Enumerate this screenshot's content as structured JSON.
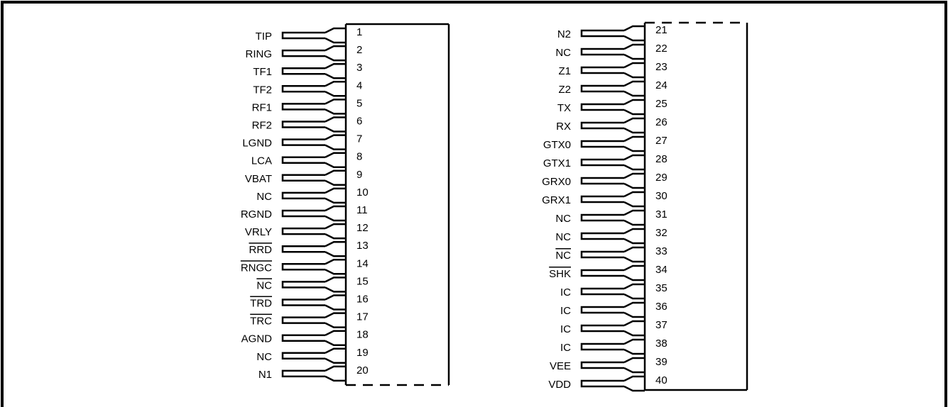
{
  "left_pins": [
    {
      "label": "TIP",
      "number": 1
    },
    {
      "label": "RING",
      "number": 2
    },
    {
      "label": "TF1",
      "number": 3
    },
    {
      "label": "TF2",
      "number": 4
    },
    {
      "label": "RF1",
      "number": 5
    },
    {
      "label": "RF2",
      "number": 6
    },
    {
      "label": "LGND",
      "number": 7
    },
    {
      "label": "LCA",
      "number": 8
    },
    {
      "label": "VBAT",
      "number": 9
    },
    {
      "label": "NC",
      "number": 10
    },
    {
      "label": "RGND",
      "number": 11
    },
    {
      "label": "VRLY",
      "number": 12
    },
    {
      "label": "RRD",
      "number": 13,
      "overline": true
    },
    {
      "label": "RNGC",
      "number": 14,
      "overline": true
    },
    {
      "label": "NC",
      "number": 15,
      "overline": true
    },
    {
      "label": "TRD",
      "number": 16,
      "overline": true
    },
    {
      "label": "TRC",
      "number": 17,
      "overline": true
    },
    {
      "label": "AGND",
      "number": 18
    },
    {
      "label": "NC",
      "number": 19
    },
    {
      "label": "N1",
      "number": 20
    }
  ],
  "right_pins": [
    {
      "label": "N2",
      "number": 21
    },
    {
      "label": "NC",
      "number": 22
    },
    {
      "label": "Z1",
      "number": 23
    },
    {
      "label": "Z2",
      "number": 24
    },
    {
      "label": "TX",
      "number": 25
    },
    {
      "label": "RX",
      "number": 26
    },
    {
      "label": "GTX0",
      "number": 27
    },
    {
      "label": "GTX1",
      "number": 28
    },
    {
      "label": "GRX0",
      "number": 29
    },
    {
      "label": "GRX1",
      "number": 30
    },
    {
      "label": "NC",
      "number": 31
    },
    {
      "label": "NC",
      "number": 32
    },
    {
      "label": "NC",
      "number": 33,
      "overline": true
    },
    {
      "label": "SHK",
      "number": 34,
      "overline": true
    },
    {
      "label": "IC",
      "number": 35
    },
    {
      "label": "IC",
      "number": 36
    },
    {
      "label": "IC",
      "number": 37
    },
    {
      "label": "IC",
      "number": 38
    },
    {
      "label": "VEE",
      "number": 39
    },
    {
      "label": "VDD",
      "number": 40
    }
  ]
}
